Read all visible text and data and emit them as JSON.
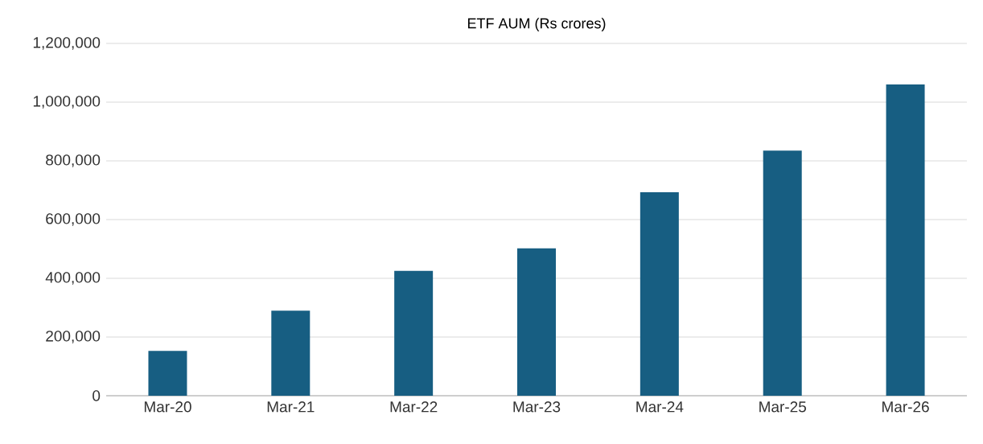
{
  "chart_data": {
    "type": "bar",
    "title": "ETF AUM (Rs crores)",
    "categories": [
      "Mar-20",
      "Mar-21",
      "Mar-22",
      "Mar-23",
      "Mar-24",
      "Mar-25",
      "Mar-26"
    ],
    "values": [
      153000,
      290000,
      425000,
      502000,
      693000,
      835000,
      1060000
    ],
    "color": "#175e82",
    "ylim": [
      0,
      1200000
    ],
    "yticks": [
      {
        "value": 0,
        "label": "0"
      },
      {
        "value": 200000,
        "label": "200,000"
      },
      {
        "value": 400000,
        "label": "400,000"
      },
      {
        "value": 600000,
        "label": "600,000"
      },
      {
        "value": 800000,
        "label": "800,000"
      },
      {
        "value": 1000000,
        "label": "1,000,000"
      },
      {
        "value": 1200000,
        "label": "1,200,000"
      }
    ],
    "grid": "y"
  }
}
